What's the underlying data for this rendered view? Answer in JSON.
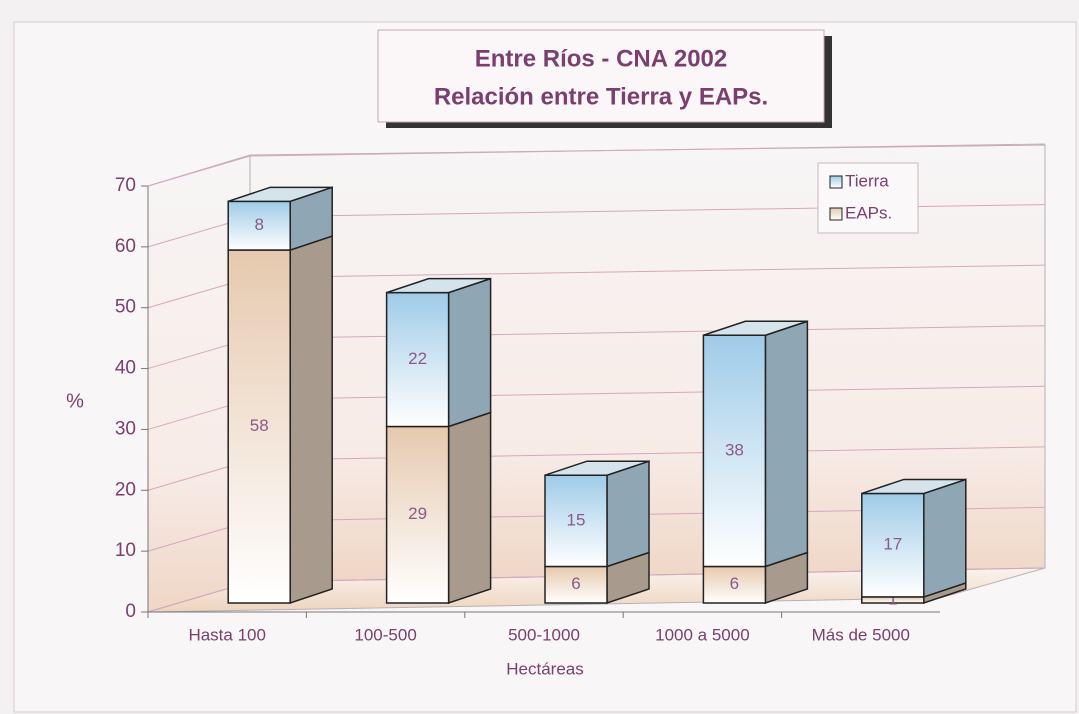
{
  "chart_data": {
    "type": "bar3d_stacked",
    "title": "Entre Ríos - CNA 2002",
    "subtitle": "Relación entre Tierra y EAPs.",
    "x_label": "Hectáreas",
    "y_label": "%",
    "categories": [
      "Hasta 100",
      "100-500",
      "500-1000",
      "1000 a 5000",
      "Más de 5000"
    ],
    "series": [
      {
        "name": "EAPs.",
        "color": "#e6c9ae",
        "values": [
          58,
          29,
          6,
          6,
          1
        ]
      },
      {
        "name": "Tierra",
        "color": "#9fcbe8",
        "values": [
          8,
          22,
          15,
          38,
          17
        ]
      }
    ],
    "ylim": [
      0,
      70
    ],
    "yticks": [
      0,
      10,
      20,
      30,
      40,
      50,
      60,
      70
    ],
    "grid": true,
    "legend": "top-right"
  }
}
